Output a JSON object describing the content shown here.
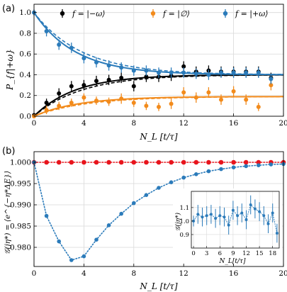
{
  "panel_labels": [
    "(a)",
    "(b)"
  ],
  "colors": {
    "black": "#000000",
    "orange": "#f28b1c",
    "blue": "#2b7bba",
    "red": "#e8141c",
    "grid": "#d9d9d9"
  },
  "chart_data": [
    {
      "id": "a",
      "type": "scatter",
      "ylabel": "P_{f|+ω}",
      "xlabel": "N_L [t/τ]",
      "xlim": [
        0,
        20
      ],
      "ylim": [
        0,
        1.08
      ],
      "xticks": [
        "0",
        "4",
        "8",
        "12",
        "16",
        "20"
      ],
      "yticks": [
        "0.0",
        "0.2",
        "0.4",
        "0.6",
        "0.8",
        "1.0"
      ],
      "grid": true,
      "legend_placement": "top",
      "legend": [
        "f = |−ω⟩",
        "f = |∅⟩",
        "f = |+ω⟩"
      ],
      "series": [
        {
          "name": "f = |−ω⟩",
          "color": "black",
          "x": [
            0,
            1,
            2,
            3,
            4,
            5,
            6,
            7,
            8,
            9,
            10,
            11,
            12,
            13,
            14,
            15,
            16,
            17,
            18,
            19
          ],
          "y": [
            0.01,
            0.13,
            0.22,
            0.29,
            0.3,
            0.34,
            0.35,
            0.37,
            0.29,
            0.38,
            0.38,
            0.39,
            0.48,
            0.43,
            0.44,
            0.43,
            0.43,
            0.43,
            0.43,
            0.37
          ],
          "err": [
            0.02,
            0.04,
            0.05,
            0.05,
            0.05,
            0.05,
            0.05,
            0.05,
            0.05,
            0.05,
            0.05,
            0.05,
            0.05,
            0.05,
            0.05,
            0.05,
            0.05,
            0.05,
            0.05,
            0.05
          ]
        },
        {
          "name": "f = |∅⟩",
          "color": "orange",
          "x": [
            0,
            1,
            2,
            3,
            4,
            5,
            6,
            7,
            8,
            9,
            10,
            11,
            12,
            13,
            14,
            15,
            16,
            17,
            18,
            19
          ],
          "y": [
            0.0,
            0.06,
            0.1,
            0.13,
            0.18,
            0.15,
            0.14,
            0.17,
            0.13,
            0.1,
            0.09,
            0.12,
            0.23,
            0.18,
            0.23,
            0.16,
            0.24,
            0.16,
            0.09,
            0.3
          ],
          "err": [
            0.02,
            0.04,
            0.04,
            0.04,
            0.04,
            0.04,
            0.04,
            0.05,
            0.04,
            0.04,
            0.04,
            0.05,
            0.05,
            0.05,
            0.05,
            0.05,
            0.05,
            0.05,
            0.04,
            0.05
          ]
        },
        {
          "name": "f = |+ω⟩",
          "color": "blue",
          "x": [
            0,
            1,
            2,
            3,
            4,
            5,
            6,
            7,
            8,
            9,
            10,
            11,
            12,
            13,
            14,
            15,
            16,
            17,
            18,
            19
          ],
          "y": [
            1.0,
            0.82,
            0.69,
            0.66,
            0.56,
            0.52,
            0.49,
            0.47,
            0.44,
            0.44,
            0.42,
            0.42,
            0.42,
            0.41,
            0.4,
            0.42,
            0.42,
            0.42,
            0.42,
            0.36
          ],
          "err": [
            0.03,
            0.05,
            0.05,
            0.05,
            0.05,
            0.05,
            0.05,
            0.05,
            0.05,
            0.05,
            0.05,
            0.05,
            0.05,
            0.05,
            0.05,
            0.05,
            0.05,
            0.05,
            0.05,
            0.05
          ]
        }
      ],
      "curves": [
        {
          "color": "black",
          "style": "solid",
          "amp": 0.4,
          "rate": 0.3,
          "base": 0.0
        },
        {
          "color": "black",
          "style": "dashed",
          "amp": 0.4,
          "rate": 0.26,
          "base": 0.0
        },
        {
          "color": "orange",
          "style": "solid",
          "amp": 0.19,
          "rate": 0.28,
          "base": 0.0
        },
        {
          "color": "orange",
          "style": "dashed",
          "amp": 0.19,
          "rate": 0.24,
          "base": 0.0
        },
        {
          "color": "blue",
          "style": "solid",
          "amp": 0.6,
          "rate": 0.3,
          "base": 0.4,
          "decay": true
        },
        {
          "color": "blue",
          "style": "dashed",
          "amp": 0.6,
          "rate": 0.26,
          "base": 0.4,
          "decay": true
        }
      ]
    },
    {
      "id": "b",
      "type": "line",
      "ylabel": "𝒢(jη*) = ⟨e^{−η*ΔE}⟩",
      "xlabel": "N_L [t/τ]",
      "xlim": [
        0,
        20
      ],
      "ylim": [
        0.9755,
        1.0025
      ],
      "xticks": [
        "0",
        "4",
        "8",
        "12",
        "16",
        "20"
      ],
      "yticks": [
        "0.980",
        "0.985",
        "0.990",
        "0.995",
        "1.000"
      ],
      "grid": true,
      "series": [
        {
          "name": "red",
          "color": "red",
          "style": "dotted",
          "x": [
            0,
            1,
            2,
            3,
            4,
            5,
            6,
            7,
            8,
            9,
            10,
            11,
            12,
            13,
            14,
            15,
            16,
            17,
            18,
            19,
            20
          ],
          "y": [
            1.0,
            1.0,
            1.0,
            1.0,
            1.0,
            1.0,
            1.0,
            1.0,
            1.0,
            1.0,
            1.0,
            1.0,
            1.0,
            1.0,
            1.0,
            1.0,
            1.0,
            1.0,
            1.0,
            1.0,
            1.0
          ]
        },
        {
          "name": "blue",
          "color": "blue",
          "style": "dotted",
          "x": [
            0,
            1,
            2,
            3,
            4,
            5,
            6,
            7,
            8,
            9,
            10,
            11,
            12,
            13,
            14,
            15,
            16,
            17,
            18,
            19,
            20
          ],
          "y": [
            1.0,
            0.9874,
            0.9814,
            0.977,
            0.9779,
            0.9818,
            0.9852,
            0.9879,
            0.9904,
            0.9923,
            0.994,
            0.9953,
            0.9964,
            0.9972,
            0.9979,
            0.9984,
            0.9988,
            0.9991,
            0.9993,
            0.9995,
            0.9996
          ]
        }
      ],
      "inset": {
        "ylabel": "𝒢(jη*)",
        "xlabel": "N_L[t/τ]",
        "xlim": [
          -0.5,
          19.5
        ],
        "ylim": [
          0.8,
          1.22
        ],
        "xticks": [
          "0",
          "3",
          "6",
          "9",
          "12",
          "15",
          "18"
        ],
        "yticks": [
          "0.9",
          "1.0",
          "1.1"
        ],
        "color": "blue",
        "x": [
          0,
          1,
          2,
          3,
          4,
          5,
          6,
          7,
          8,
          9,
          10,
          11,
          12,
          13,
          14,
          15,
          16,
          17,
          18,
          19
        ],
        "y": [
          1.0,
          1.05,
          1.03,
          1.04,
          1.05,
          1.02,
          1.04,
          1.03,
          0.97,
          1.08,
          1.04,
          1.06,
          1.01,
          1.12,
          1.09,
          1.07,
          1.04,
          0.98,
          1.06,
          0.91
        ],
        "err": [
          0.04,
          0.07,
          0.07,
          0.07,
          0.07,
          0.07,
          0.07,
          0.07,
          0.07,
          0.07,
          0.07,
          0.07,
          0.07,
          0.07,
          0.07,
          0.07,
          0.07,
          0.07,
          0.07,
          0.07
        ]
      }
    }
  ]
}
